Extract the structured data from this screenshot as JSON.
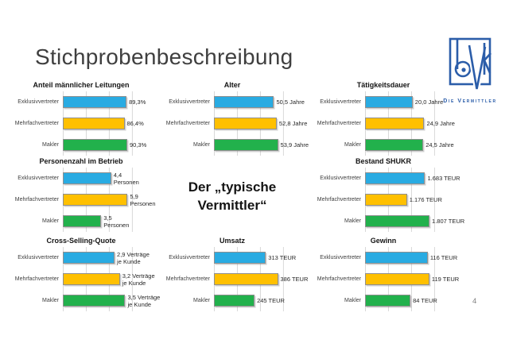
{
  "slide": {
    "title": "Stichprobenbeschreibung",
    "page_number": "4",
    "center_text_line1": "Der „typische",
    "center_text_line2": "Vermittler“"
  },
  "logo": {
    "caption": "Die Vermittler",
    "color": "#2b5da9"
  },
  "colors": {
    "series": [
      "#29abe2",
      "#ffc000",
      "#22b14c"
    ],
    "grid": "#d8d8d8",
    "category_label": "#404040",
    "value_label": "#262626",
    "slide_title": "#3f3f3f",
    "chart_title": "#141414",
    "page_number": "#7f7f7f"
  },
  "chart_data": [
    {
      "type": "bar",
      "orientation": "horizontal",
      "title": "Anteil männlicher Leitungen",
      "categories": [
        "Exklusivvertreter",
        "Mehrfachvertreter",
        "Makler"
      ],
      "values": [
        89.3,
        86.4,
        90.3
      ],
      "value_labels": [
        "89,3%",
        "86,4%",
        "90,3%"
      ],
      "xmax": 100,
      "grid": true,
      "position": "row1-col1"
    },
    {
      "type": "bar",
      "orientation": "horizontal",
      "title": "Alter",
      "categories": [
        "Exklusivvertreter",
        "Mehrfachvertreter",
        "Makler"
      ],
      "values": [
        50.5,
        52.8,
        53.9
      ],
      "value_labels": [
        "50,5 Jahre",
        "52,8 Jahre",
        "53,9 Jahre"
      ],
      "xmax": 60,
      "grid": true,
      "position": "row1-col2"
    },
    {
      "type": "bar",
      "orientation": "horizontal",
      "title": "Tätigkeitsdauer",
      "categories": [
        "Exklusivvertreter",
        "Mehrfachvertreter",
        "Makler"
      ],
      "values": [
        20.0,
        24.9,
        24.5
      ],
      "value_labels": [
        "20,0 Jahre",
        "24,9 Jahre",
        "24,5 Jahre"
      ],
      "xmax": 30,
      "grid": true,
      "position": "row1-col3"
    },
    {
      "type": "bar",
      "orientation": "horizontal",
      "title": "Personenzahl im Betrieb",
      "categories": [
        "Exklusivvertreter",
        "Mehrfachvertreter",
        "Makler"
      ],
      "values": [
        4.4,
        5.9,
        3.5
      ],
      "value_labels": [
        "4,4\nPersonen",
        "5,9\nPersonen",
        "3,5\nPersonen"
      ],
      "xmax": 6.5,
      "grid": true,
      "position": "row2-col1"
    },
    {
      "type": "bar",
      "orientation": "horizontal",
      "title": "Bestand SHUKR",
      "categories": [
        "Exklusivvertreter",
        "Mehrfachvertreter",
        "Makler"
      ],
      "values": [
        1683,
        1176,
        1807
      ],
      "value_labels": [
        "1.683 TEUR",
        "1.176 TEUR",
        "1.807 TEUR"
      ],
      "xmax": 2000,
      "grid": true,
      "position": "row2-col3"
    },
    {
      "type": "bar",
      "orientation": "horizontal",
      "title": "Cross-Selling-Quote",
      "categories": [
        "Exklusivvertreter",
        "Mehrfachvertreter",
        "Makler"
      ],
      "values": [
        2.9,
        3.2,
        3.5
      ],
      "value_labels": [
        "2,9 Verträge\nje Kunde",
        "3,2 Verträge\nje Kunde",
        "3,5 Verträge\nje Kunde"
      ],
      "xmax": 4,
      "grid": true,
      "position": "row3-col1"
    },
    {
      "type": "bar",
      "orientation": "horizontal",
      "title": "Umsatz",
      "categories": [
        "Exklusivvertreter",
        "Mehrfachvertreter",
        "Makler"
      ],
      "values": [
        313,
        386,
        245
      ],
      "value_labels": [
        "313 TEUR",
        "386 TEUR",
        "245 TEUR"
      ],
      "xmax": 430,
      "grid": true,
      "position": "row3-col2"
    },
    {
      "type": "bar",
      "orientation": "horizontal",
      "title": "Gewinn",
      "categories": [
        "Exklusivvertreter",
        "Mehrfachvertreter",
        "Makler"
      ],
      "values": [
        116,
        119,
        84
      ],
      "value_labels": [
        "116 TEUR",
        "119 TEUR",
        "84 TEUR"
      ],
      "xmax": 132,
      "grid": true,
      "position": "row3-col3"
    }
  ]
}
